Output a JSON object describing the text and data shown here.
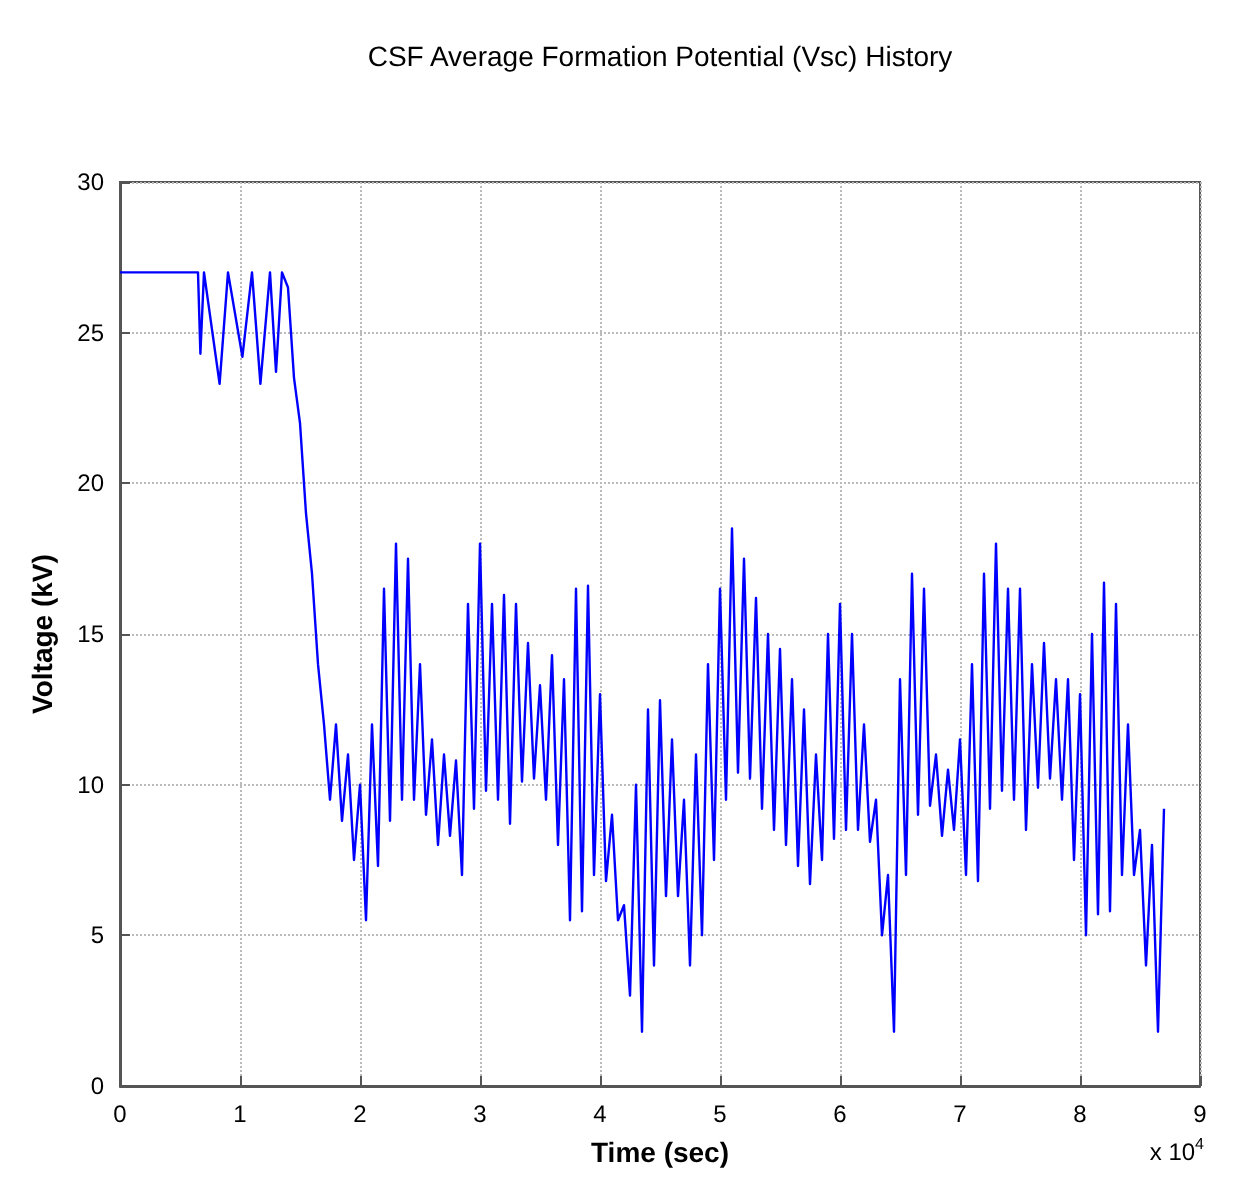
{
  "chart_data": {
    "type": "line",
    "title": "CSF Average Formation Potential (Vsc) History",
    "xlabel": "Time (sec)",
    "ylabel": "Voltage (kV)",
    "annotations": [
      "x 10$^{4}$"
    ],
    "x": [
      0,
      0.65,
      0.67,
      0.7,
      0.83,
      0.9,
      1.02,
      1.1,
      1.17,
      1.25,
      1.3,
      1.35,
      1.4,
      1.45,
      1.5,
      1.55,
      1.6,
      1.65,
      1.7,
      1.75,
      1.8,
      1.85,
      1.9,
      1.95,
      2.0,
      2.05,
      2.1,
      2.15,
      2.2,
      2.25,
      2.3,
      2.35,
      2.4,
      2.45,
      2.5,
      2.55,
      2.6,
      2.65,
      2.7,
      2.75,
      2.8,
      2.85,
      2.9,
      2.95,
      3.0,
      3.05,
      3.1,
      3.15,
      3.2,
      3.25,
      3.3,
      3.35,
      3.4,
      3.45,
      3.5,
      3.55,
      3.6,
      3.65,
      3.7,
      3.75,
      3.8,
      3.85,
      3.9,
      3.95,
      4.0,
      4.05,
      4.1,
      4.15,
      4.2,
      4.25,
      4.3,
      4.35,
      4.4,
      4.45,
      4.5,
      4.55,
      4.6,
      4.65,
      4.7,
      4.75,
      4.8,
      4.85,
      4.9,
      4.95,
      5.0,
      5.05,
      5.1,
      5.15,
      5.2,
      5.25,
      5.3,
      5.35,
      5.4,
      5.45,
      5.5,
      5.55,
      5.6,
      5.65,
      5.7,
      5.75,
      5.8,
      5.85,
      5.9,
      5.95,
      6.0,
      6.05,
      6.1,
      6.15,
      6.2,
      6.25,
      6.3,
      6.35,
      6.4,
      6.45,
      6.5,
      6.55,
      6.6,
      6.65,
      6.7,
      6.75,
      6.8,
      6.85,
      6.9,
      6.95,
      7.0,
      7.05,
      7.1,
      7.15,
      7.2,
      7.25,
      7.3,
      7.35,
      7.4,
      7.45,
      7.5,
      7.55,
      7.6,
      7.65,
      7.7,
      7.75,
      7.8,
      7.85,
      7.9,
      7.95,
      8.0,
      8.05,
      8.1,
      8.15,
      8.2,
      8.25,
      8.3,
      8.35,
      8.4,
      8.45,
      8.5,
      8.55,
      8.6,
      8.65,
      8.7
    ],
    "series": [
      {
        "color": "#0000ff",
        "values": [
          27,
          27,
          24.3,
          27,
          23.3,
          27,
          24.2,
          27,
          23.3,
          27,
          23.7,
          27,
          26.5,
          23.5,
          22,
          19,
          17,
          14,
          12,
          9.5,
          12,
          8.8,
          11,
          7.5,
          10,
          5.5,
          12,
          7.3,
          16.5,
          8.8,
          18,
          9.5,
          17.5,
          9.5,
          14,
          9,
          11.5,
          8,
          11,
          8.3,
          10.8,
          7,
          16,
          9.2,
          18,
          9.8,
          16,
          9.5,
          16.3,
          8.7,
          16,
          10.1,
          14.7,
          10.2,
          13.3,
          9.5,
          14.3,
          8,
          13.5,
          5.5,
          16.5,
          5.8,
          16.6,
          7,
          13,
          6.8,
          9,
          5.5,
          6,
          3,
          10,
          1.8,
          12.5,
          4,
          12.8,
          6.3,
          11.5,
          6.3,
          9.5,
          4,
          11,
          5,
          14,
          7.5,
          16.5,
          9.5,
          18.5,
          10.4,
          17.5,
          10.2,
          16.2,
          9.2,
          15,
          8.5,
          14.5,
          8,
          13.5,
          7.3,
          12.5,
          6.7,
          11,
          7.5,
          15,
          8.2,
          16,
          8.5,
          15,
          8.5,
          12,
          8.1,
          9.5,
          5,
          7,
          1.8,
          13.5,
          7,
          17,
          9,
          16.5,
          9.3,
          11,
          8.3,
          10.5,
          8.5,
          11.5,
          7,
          14,
          6.8,
          17,
          9.2,
          18,
          9.8,
          16.5,
          9.5,
          16.5,
          8.5,
          14,
          9.9,
          14.7,
          10.2,
          13.5,
          9.5,
          13.5,
          7.5,
          13,
          5,
          15,
          5.7,
          16.7,
          5.8,
          16,
          7,
          12,
          7,
          8.5,
          4,
          8,
          1.8,
          9.2
        ]
      }
    ],
    "xlim": [
      0,
      9
    ],
    "xticks": [
      0,
      1,
      2,
      3,
      4,
      5,
      6,
      7,
      8,
      9
    ],
    "ylim": [
      0,
      30
    ],
    "yticks": [
      0,
      5,
      10,
      15,
      20,
      25,
      30
    ],
    "grid": true,
    "marker": "none",
    "line_style": "solid"
  }
}
